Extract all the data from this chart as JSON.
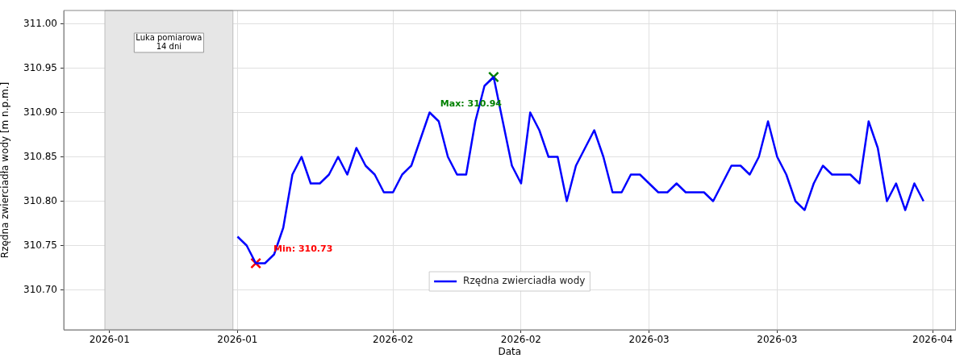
{
  "chart_data": {
    "type": "line",
    "xlabel": "Data",
    "ylabel": "Rzędna zwierciadła wody [m n.p.m.]",
    "x": [
      "2026-01-15",
      "2026-01-16",
      "2026-01-17",
      "2026-01-18",
      "2026-01-19",
      "2026-01-20",
      "2026-01-21",
      "2026-01-22",
      "2026-01-23",
      "2026-01-24",
      "2026-01-25",
      "2026-01-26",
      "2026-01-27",
      "2026-01-28",
      "2026-01-29",
      "2026-01-30",
      "2026-01-31",
      "2026-02-01",
      "2026-02-02",
      "2026-02-03",
      "2026-02-04",
      "2026-02-05",
      "2026-02-06",
      "2026-02-07",
      "2026-02-08",
      "2026-02-09",
      "2026-02-10",
      "2026-02-11",
      "2026-02-12",
      "2026-02-13",
      "2026-02-14",
      "2026-02-15",
      "2026-02-16",
      "2026-02-17",
      "2026-02-18",
      "2026-02-19",
      "2026-02-20",
      "2026-02-21",
      "2026-02-22",
      "2026-02-23",
      "2026-02-24",
      "2026-02-25",
      "2026-02-26",
      "2026-02-27",
      "2026-02-28",
      "2026-03-01",
      "2026-03-02",
      "2026-03-03",
      "2026-03-04",
      "2026-03-05",
      "2026-03-06",
      "2026-03-07",
      "2026-03-08",
      "2026-03-09",
      "2026-03-10",
      "2026-03-11",
      "2026-03-12",
      "2026-03-13",
      "2026-03-14",
      "2026-03-15",
      "2026-03-16",
      "2026-03-17",
      "2026-03-18",
      "2026-03-19",
      "2026-03-20",
      "2026-03-21",
      "2026-03-22",
      "2026-03-23",
      "2026-03-24",
      "2026-03-25",
      "2026-03-26",
      "2026-03-27",
      "2026-03-28",
      "2026-03-29",
      "2026-03-30",
      "2026-03-31"
    ],
    "series": [
      {
        "name": "Rzędna zwierciadła wody",
        "color": "#0000ff",
        "values": [
          310.76,
          310.75,
          310.73,
          310.73,
          310.74,
          310.77,
          310.83,
          310.85,
          310.82,
          310.82,
          310.83,
          310.85,
          310.83,
          310.86,
          310.84,
          310.83,
          310.81,
          310.81,
          310.83,
          310.84,
          310.87,
          310.9,
          310.89,
          310.85,
          310.83,
          310.83,
          310.89,
          310.93,
          310.94,
          310.89,
          310.84,
          310.82,
          310.9,
          310.88,
          310.85,
          310.85,
          310.8,
          310.84,
          310.86,
          310.88,
          310.85,
          310.81,
          310.81,
          310.83,
          310.83,
          310.82,
          310.81,
          310.81,
          310.82,
          310.81,
          310.81,
          310.81,
          310.8,
          310.82,
          310.84,
          310.84,
          310.83,
          310.85,
          310.89,
          310.85,
          310.83,
          310.8,
          310.79,
          310.82,
          310.84,
          310.83,
          310.83,
          310.83,
          310.82,
          310.89,
          310.86,
          310.8,
          310.82,
          310.79,
          310.82,
          310.8
        ]
      },
      {
        "type": "scatter",
        "marker": "cross",
        "color": "#ff0000",
        "x": [
          "2026-01-17"
        ],
        "values": [
          310.73
        ]
      },
      {
        "type": "scatter",
        "marker": "cross",
        "color": "#008000",
        "x": [
          "2026-02-12"
        ],
        "values": [
          310.94
        ]
      }
    ],
    "annotations": [
      {
        "text": "Min: 310.73",
        "x": "2026-01-17",
        "y": 310.73
      },
      {
        "text": "Max: 310.94",
        "x": "2026-02-12",
        "y": 310.94
      }
    ],
    "bands": [
      {
        "axis": "x",
        "from": "2025-12-31T12:00",
        "to": "2026-01-14T12:00",
        "label": "Luka pomiarowa\n14 dni",
        "color": "#e6e6e6"
      }
    ],
    "xlim": [
      "2025-12-27",
      "2026-04-03T12:00"
    ],
    "xticks": [
      {
        "value": "2026-01-01",
        "label": "2026-01"
      },
      {
        "value": "2026-01-15",
        "label": "2026-01"
      },
      {
        "value": "2026-02-01",
        "label": "2026-02"
      },
      {
        "value": "2026-02-15",
        "label": "2026-02"
      },
      {
        "value": "2026-03-01",
        "label": "2026-03"
      },
      {
        "value": "2026-03-15",
        "label": "2026-03"
      },
      {
        "value": "2026-04-01",
        "label": "2026-04"
      }
    ],
    "ylim": [
      310.655,
      311.015
    ],
    "yticks": [
      {
        "value": 310.7,
        "label": "310.70"
      },
      {
        "value": 310.75,
        "label": "310.75"
      },
      {
        "value": 310.8,
        "label": "310.80"
      },
      {
        "value": 310.85,
        "label": "310.85"
      },
      {
        "value": 310.9,
        "label": "310.90"
      },
      {
        "value": 310.95,
        "label": "310.95"
      },
      {
        "value": 311.0,
        "label": "311.00"
      }
    ],
    "grid": true,
    "legend": "bottom",
    "line_style": "solid",
    "marker": "none"
  }
}
